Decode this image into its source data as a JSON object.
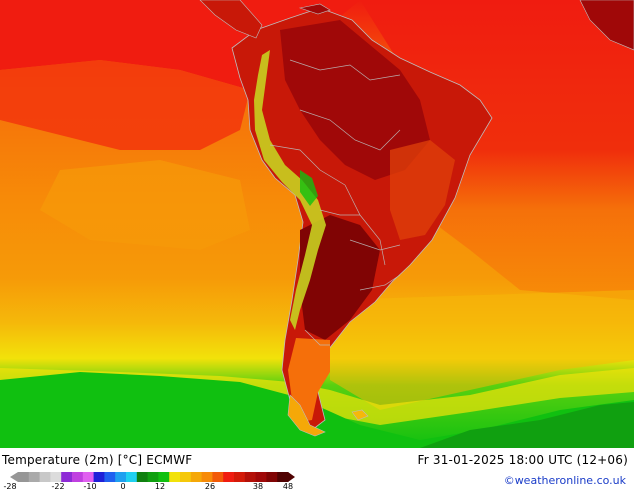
{
  "map": {
    "region": "South America",
    "colors": {
      "ocean_north": "#f01c10",
      "ocean_mid": "#f78b08",
      "ocean_south": "#f5b80a",
      "band_yellow": "#f2e20a",
      "band_green": "#10c010",
      "land_hot": "#a00808",
      "land_warm": "#d41a08",
      "andes": "#c8d020",
      "borders": "#bdbdbd"
    }
  },
  "footer": {
    "title": "Temperature (2m) [°C] ECMWF",
    "datetime": "Fr 31-01-2025 18:00 UTC (12+06)",
    "credit": "©weatheronline.co.uk"
  },
  "legend": {
    "ticks": [
      "-28",
      "-22",
      "-10",
      "0",
      "12",
      "26",
      "38",
      "48"
    ],
    "colors": [
      "#969696",
      "#aaaaaa",
      "#c8c8c8",
      "#dcdcdc",
      "#8e2bd6",
      "#c040e0",
      "#e060f0",
      "#2020d8",
      "#2060f0",
      "#20a0f0",
      "#20d0f0",
      "#108010",
      "#10a010",
      "#10c010",
      "#f2e20a",
      "#f5c80a",
      "#f5a808",
      "#f78b08",
      "#f25a08",
      "#f01c10",
      "#d41a08",
      "#b41008",
      "#a00808",
      "#800404",
      "#500202"
    ]
  }
}
